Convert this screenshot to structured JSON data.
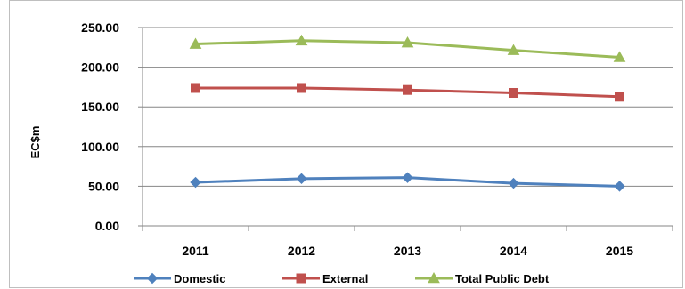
{
  "chart_data": {
    "type": "line",
    "title": "",
    "xlabel": "",
    "ylabel": "EC$m",
    "categories": [
      "2011",
      "2012",
      "2013",
      "2014",
      "2015"
    ],
    "ylim": [
      0,
      250
    ],
    "ytick_labels": [
      "0.00",
      "50.00",
      "100.00",
      "150.00",
      "200.00",
      "250.00"
    ],
    "ytick_values": [
      0,
      50,
      100,
      150,
      200,
      250
    ],
    "grid": true,
    "legend_position": "bottom",
    "series": [
      {
        "name": "Domestic",
        "color": "#4f81bd",
        "marker": "diamond",
        "values": [
          54.9,
          59.6,
          60.9,
          53.7,
          50.0
        ]
      },
      {
        "name": "External",
        "color": "#c0504d",
        "marker": "square",
        "values": [
          173.8,
          173.8,
          171.3,
          167.6,
          162.8
        ]
      },
      {
        "name": "Total Public Debt",
        "color": "#9bbb59",
        "marker": "triangle",
        "values": [
          229.2,
          233.4,
          230.9,
          221.3,
          212.5
        ]
      }
    ]
  }
}
